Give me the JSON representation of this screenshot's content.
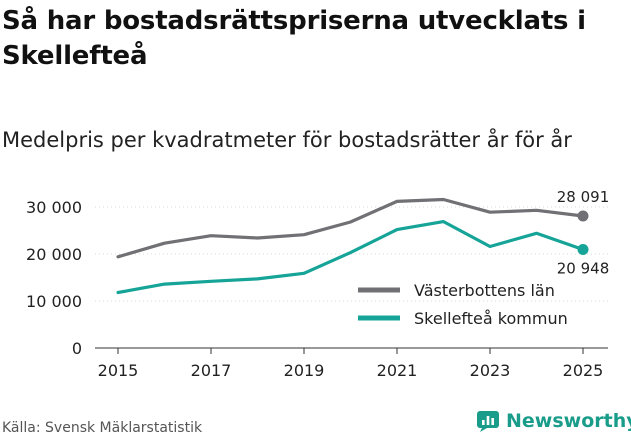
{
  "header": {
    "title": "Så har bostadsrättspriserna utvecklats i Skellefteå",
    "subtitle": "Medelpris per kvadratmeter för bostadsrätter år för år"
  },
  "footer": {
    "source": "Källa: Svensk Mäklarstatistik",
    "brand": "Newsworthy"
  },
  "colors": {
    "series1": "#707075",
    "series2": "#15a497",
    "grid": "#d8d8d8",
    "brand": "#1a9c8a"
  },
  "chart_data": {
    "type": "line",
    "title": "Medelpris per kvadratmeter för bostadsrätter år för år",
    "xlabel": "",
    "ylabel": "",
    "x": [
      2015,
      2016,
      2017,
      2018,
      2019,
      2020,
      2021,
      2022,
      2023,
      2024,
      2025
    ],
    "xticks": [
      "2015",
      "2017",
      "2019",
      "2021",
      "2023",
      "2025"
    ],
    "yticks": [
      "0",
      "10 000",
      "20 000",
      "30 000"
    ],
    "ylim": [
      0,
      30000
    ],
    "grid": true,
    "legend_position": "bottom-right",
    "series": [
      {
        "name": "Västerbottens län",
        "values": [
          19400,
          22300,
          23900,
          23400,
          24100,
          26800,
          31200,
          31600,
          28900,
          29300,
          28091
        ],
        "end_label": "28 091"
      },
      {
        "name": "Skellefteå kommun",
        "values": [
          11800,
          13600,
          14200,
          14700,
          15900,
          20300,
          25200,
          26900,
          21600,
          24400,
          20948
        ],
        "end_label": "20 948"
      }
    ]
  }
}
